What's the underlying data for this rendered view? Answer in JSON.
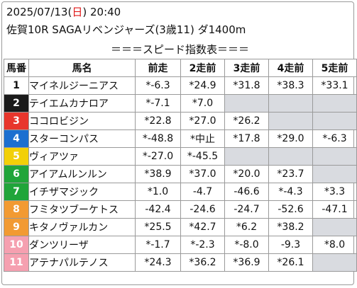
{
  "header": {
    "date": "2025/07/13",
    "weekday_open": "(",
    "weekday": "日",
    "weekday_close": ")",
    "time": "20:40",
    "race": "佐賀10R SAGAリベンジャーズ(3歳11) ダ1400m"
  },
  "banner": "＝＝＝スピード指数表＝＝＝",
  "columns": [
    "馬番",
    "馬名",
    "前走",
    "2走前",
    "3走前",
    "4走前",
    "5走前"
  ],
  "colors": {
    "empty_cell": "#d9dbe0",
    "weekday_sunday": "#e01818"
  },
  "rows": [
    {
      "num": "1",
      "bg": "#ffffff",
      "fg": "#111111",
      "name": "マイネルジーニアス",
      "vals": [
        "*-6.3",
        "*24.9",
        "*31.8",
        "*38.3",
        "*33.1"
      ],
      "mark": -1
    },
    {
      "num": "2",
      "bg": "#1a1a1a",
      "fg": "#ffffff",
      "name": "テイエムカナロア",
      "vals": [
        "*-7.1",
        "*7.0",
        "",
        "",
        ""
      ],
      "mark": -1
    },
    {
      "num": "3",
      "bg": "#e8362c",
      "fg": "#ffffff",
      "name": "ココロビジン",
      "vals": [
        "*22.8",
        "*27.0",
        "*26.2",
        "",
        ""
      ],
      "mark": 0
    },
    {
      "num": "4",
      "bg": "#1c6fd0",
      "fg": "#ffffff",
      "name": "スターコンパス",
      "vals": [
        "*-48.8",
        "*中止",
        "*17.8",
        "*29.0",
        "*-6.3"
      ],
      "mark": 0
    },
    {
      "num": "5",
      "bg": "#f2d008",
      "fg": "#ffffff",
      "name": "ヴィアツァ",
      "vals": [
        "*-27.0",
        "*-45.5",
        "",
        "",
        ""
      ],
      "mark": 0
    },
    {
      "num": "6",
      "bg": "#20a53a",
      "fg": "#ffffff",
      "name": "アイアムルンルン",
      "vals": [
        "*38.9",
        "*37.0",
        "*20.0",
        "*23.7",
        ""
      ],
      "mark": 2
    },
    {
      "num": "7",
      "bg": "#20a53a",
      "fg": "#ffffff",
      "name": "イチザマジック",
      "vals": [
        "*1.0",
        "-4.7",
        "-46.6",
        "*-4.3",
        "*3.3"
      ],
      "mark": 3
    },
    {
      "num": "8",
      "bg": "#f29a32",
      "fg": "#ffffff",
      "name": "フミタツブーケトス",
      "vals": [
        "-42.4",
        "-24.6",
        "-24.7",
        "-52.6",
        "-47.1"
      ],
      "mark": -1
    },
    {
      "num": "9",
      "bg": "#f29a32",
      "fg": "#ffffff",
      "name": "キタノヴァルカン",
      "vals": [
        "*25.5",
        "*42.7",
        "*6.2",
        "*38.2",
        ""
      ],
      "mark": 0
    },
    {
      "num": "10",
      "bg": "#f5a0b0",
      "fg": "#ffffff",
      "name": "ダンツリーザ",
      "vals": [
        "*-1.7",
        "*-2.3",
        "*-8.0",
        "-9.3",
        "*8.0"
      ],
      "mark": -1
    },
    {
      "num": "11",
      "bg": "#f5a0b0",
      "fg": "#ffffff",
      "name": "アテナパルテノス",
      "vals": [
        "*24.3",
        "*36.2",
        "*36.9",
        "*26.1",
        ""
      ],
      "mark": 2
    }
  ]
}
